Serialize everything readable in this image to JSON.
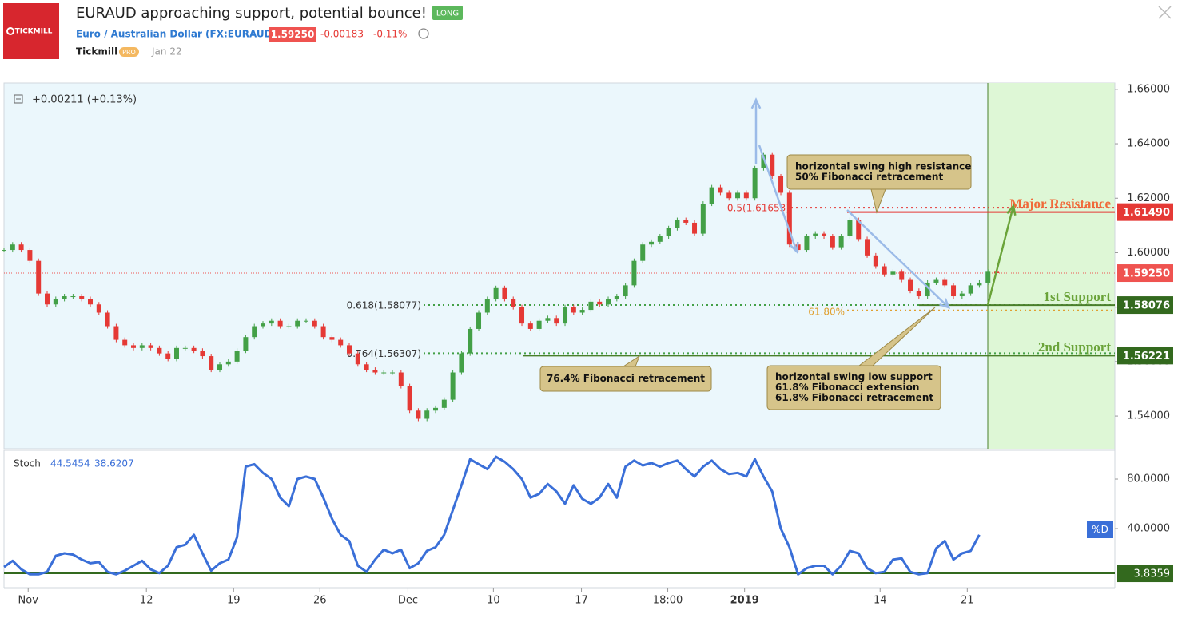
{
  "header": {
    "logo": "TICKMILL",
    "title": "EURAUD approaching support, potential bounce!",
    "badge": "LONG",
    "symbol": "Euro / Australian Dollar (FX:EURAUD)",
    "price": "1.59250",
    "change": "-0.00183",
    "change_pct": "-0.11%",
    "author": "Tickmill",
    "author_badge": "PRO",
    "date": "Jan 22"
  },
  "chart_data": [
    {
      "type": "candlestick",
      "change_label": "+0.00211 (+0.13%)",
      "values": [
        1.601,
        1.603,
        1.601,
        1.597,
        1.585,
        1.581,
        1.583,
        1.584,
        1.584,
        1.583,
        1.581,
        1.578,
        1.573,
        1.568,
        1.566,
        1.565,
        1.566,
        1.565,
        1.563,
        1.561,
        1.565,
        1.565,
        1.564,
        1.562,
        1.557,
        1.559,
        1.56,
        1.564,
        1.569,
        1.573,
        1.574,
        1.575,
        1.573,
        1.573,
        1.575,
        1.575,
        1.573,
        1.569,
        1.568,
        1.566,
        1.563,
        1.559,
        1.557,
        1.556,
        1.556,
        1.556,
        1.551,
        1.542,
        1.539,
        1.542,
        1.543,
        1.546,
        1.556,
        1.563,
        1.572,
        1.578,
        1.583,
        1.587,
        1.583,
        1.58,
        1.574,
        1.572,
        1.575,
        1.576,
        1.574,
        1.58,
        1.578,
        1.579,
        1.582,
        1.581,
        1.583,
        1.584,
        1.588,
        1.597,
        1.603,
        1.604,
        1.606,
        1.609,
        1.612,
        1.611,
        1.607,
        1.618,
        1.624,
        1.622,
        1.62,
        1.622,
        1.62,
        1.631,
        1.636,
        1.628,
        1.622,
        1.603,
        1.601,
        1.606,
        1.607,
        1.606,
        1.602,
        1.606,
        1.612,
        1.605,
        1.599,
        1.595,
        1.592,
        1.593,
        1.59,
        1.586,
        1.584,
        1.589,
        1.59,
        1.588,
        1.584,
        1.585,
        1.588,
        1.589,
        1.593,
        1.5925
      ],
      "up_color": "#43a047",
      "down_color": "#e53935",
      "xlim": [
        0,
        128.7
      ],
      "xticks": [
        {
          "value": 2.8,
          "label": "Nov"
        },
        {
          "value": 16.5,
          "label": "12"
        },
        {
          "value": 26.6,
          "label": "19"
        },
        {
          "value": 36.6,
          "label": "26"
        },
        {
          "value": 46.8,
          "label": "Dec"
        },
        {
          "value": 56.7,
          "label": "10"
        },
        {
          "value": 66.9,
          "label": "17"
        },
        {
          "value": 76.9,
          "label": "18:00"
        },
        {
          "value": 85.8,
          "label": "2019"
        },
        {
          "value": 101.5,
          "label": "14"
        },
        {
          "value": 111.6,
          "label": "21"
        }
      ],
      "ylim": [
        1.528,
        1.6623
      ],
      "yticks": [
        {
          "value": 1.54,
          "label": "1.54000"
        },
        {
          "value": 1.56,
          "label": "1.56000"
        },
        {
          "value": 1.58,
          "label": "1.58000"
        },
        {
          "value": 1.6,
          "label": "1.60000"
        },
        {
          "value": 1.62,
          "label": "1.62000"
        },
        {
          "value": 1.64,
          "label": "1.64000"
        },
        {
          "value": 1.66,
          "label": "1.66000"
        }
      ],
      "last_price": {
        "value": 1.5925,
        "label": "1.59250",
        "color": "#ef5350"
      },
      "levels": [
        {
          "name": "Major Resistance",
          "value": 1.6149,
          "label": "1.61490",
          "color": "#e53935"
        },
        {
          "name": "1st Support",
          "value": 1.58076,
          "label": "1.58076",
          "color": "#33691e"
        },
        {
          "name": "2nd Support",
          "value": 1.56221,
          "label": "1.56221",
          "color": "#33691e"
        }
      ],
      "fib_levels": [
        {
          "label": "0.5(1.61653)",
          "value": 1.61653,
          "color": "#e53935"
        },
        {
          "label": "0.618(1.58077)",
          "value": 1.58077,
          "color": "#43a047"
        },
        {
          "label": "0.764(1.56307)",
          "value": 1.56307,
          "color": "#43a047"
        },
        {
          "label": "61.80%",
          "value": 1.5788,
          "color": "#e0a030"
        }
      ],
      "callouts": [
        {
          "lines": [
            "horizontal swing high resistance",
            "50% Fibonacci retracement"
          ]
        },
        {
          "lines": [
            "76.4% Fibonacci retracement"
          ]
        },
        {
          "lines": [
            "horizontal swing low support",
            "61.8% Fibonacci extension",
            "61.8% Fibonacci retracement"
          ]
        }
      ]
    },
    {
      "type": "line",
      "title": "Stoch",
      "legend_values": [
        "44.5454",
        "38.6207"
      ],
      "series": [
        {
          "name": "%D",
          "color": "#3a6fd8",
          "values": [
            9,
            14,
            7,
            3,
            3,
            5,
            18,
            20,
            19,
            15,
            12,
            13,
            5,
            3,
            6,
            10,
            14,
            7,
            4,
            10,
            25,
            27,
            35,
            20,
            6,
            12,
            15,
            33,
            90,
            92,
            85,
            80,
            65,
            58,
            80,
            82,
            80,
            65,
            48,
            35,
            30,
            10,
            5,
            15,
            23,
            20,
            23,
            8,
            12,
            22,
            25,
            35,
            55,
            75,
            96,
            92,
            88,
            98,
            94,
            88,
            80,
            65,
            68,
            76,
            70,
            60,
            75,
            64,
            60,
            65,
            76,
            65,
            90,
            95,
            91,
            93,
            90,
            93,
            95,
            88,
            82,
            90,
            95,
            88,
            84,
            85,
            82,
            96,
            82,
            70,
            40,
            25,
            3,
            8,
            10,
            10,
            3,
            10,
            22,
            20,
            8,
            4,
            5,
            15,
            16,
            5,
            3,
            4,
            24,
            30,
            15,
            20,
            22,
            35
          ]
        }
      ],
      "ylim": [
        -7.1,
        102.6
      ],
      "yticks": [
        {
          "value": 80,
          "label": "80.0000"
        },
        {
          "value": 40,
          "label": "40.0000"
        }
      ],
      "level": {
        "value": 3.8359,
        "label": "3.8359",
        "color": "#33691e"
      }
    }
  ]
}
